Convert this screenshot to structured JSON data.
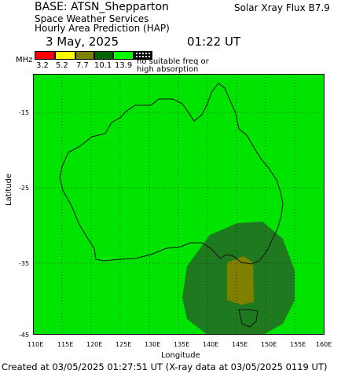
{
  "header": {
    "base": "BASE: ATSN_Shepparton",
    "line2": "Space Weather Services",
    "line3": "Hourly Area Prediction (HAP)",
    "date": "3 May, 2025",
    "time": "01:22 UT",
    "flux": "Solar Xray Flux B7.9"
  },
  "legend": {
    "unit": "MHz",
    "values": [
      "3.2",
      "5.2",
      "7.7",
      "10.1",
      "13.9"
    ],
    "colors": [
      "#ff0000",
      "#ffff00",
      "#808000",
      "#006400",
      "#00ff00"
    ],
    "nosuit_line1": "no suitable freq or",
    "nosuit_line2": "high absorption"
  },
  "map": {
    "background": "#00e400",
    "zone_outer": "#1f7a1f",
    "zone_inner": "#808000",
    "y_label": "Latitude",
    "x_label": "Longitude",
    "y_ticks": [
      "-15",
      "-25",
      "-35",
      "-45"
    ],
    "x_ticks": [
      "110E",
      "115E",
      "120E",
      "125E",
      "130E",
      "135E",
      "140E",
      "145E",
      "150E",
      "155E",
      "160E"
    ]
  },
  "footer": {
    "created": "Created at 03/05/2025 01:27:51 UT (X-ray data at 03/05/2025 0119 UT)"
  }
}
